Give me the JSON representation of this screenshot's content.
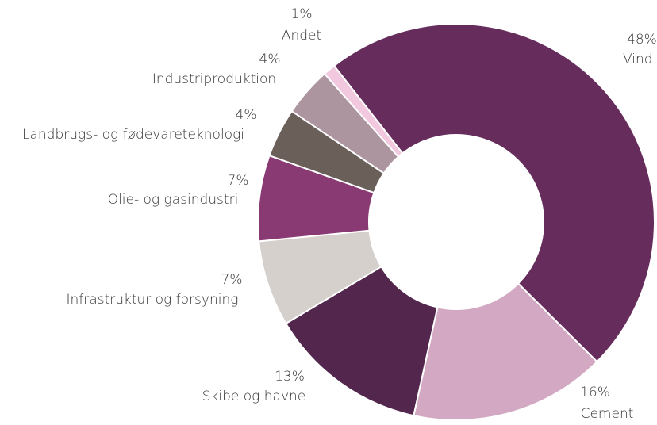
{
  "chart_data": {
    "type": "donut",
    "categories": [
      "Vind",
      "Cement",
      "Skibe og havne",
      "Infrastruktur og forsyning",
      "Olie- og gasindustri",
      "Landbrugs- og fødevareteknologi",
      "Industriproduktion",
      "Andet"
    ],
    "values": [
      48,
      16,
      13,
      7,
      7,
      4,
      4,
      1
    ],
    "value_labels": [
      "48%",
      "16%",
      "13%",
      "7%",
      "7%",
      "4%",
      "4%",
      "1%"
    ],
    "colors": [
      "#662d5c",
      "#d3a8c2",
      "#52264d",
      "#d6d0cc",
      "#8a3a73",
      "#6b5f5a",
      "#ad95a0",
      "#f2c8df"
    ]
  }
}
